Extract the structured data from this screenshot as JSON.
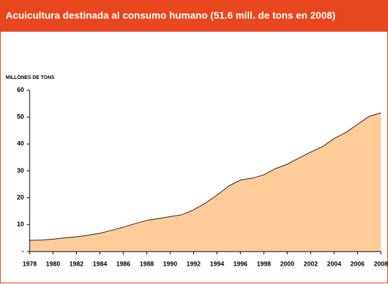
{
  "chart_data": {
    "type": "area",
    "title": "Acuicultura destinada al consumo humano (51.6 mill. de tons en 2008)",
    "y_label": "MILLONES DE TONS",
    "x": [
      1978,
      1979,
      1980,
      1981,
      1982,
      1983,
      1984,
      1985,
      1986,
      1987,
      1988,
      1989,
      1990,
      1991,
      1992,
      1993,
      1994,
      1995,
      1996,
      1997,
      1998,
      1999,
      2000,
      2001,
      2002,
      2003,
      2004,
      2005,
      2006,
      2007,
      2008
    ],
    "values": [
      4.2,
      4.3,
      4.6,
      5.1,
      5.5,
      6.1,
      6.8,
      7.9,
      9.1,
      10.4,
      11.6,
      12.3,
      13.0,
      13.7,
      15.5,
      18.0,
      21.0,
      24.4,
      26.6,
      27.3,
      28.5,
      30.9,
      32.5,
      34.8,
      37.0,
      39.0,
      42.0,
      44.3,
      47.3,
      50.3,
      51.6
    ],
    "color": "#ffcc99",
    "line_color": "#222222",
    "xlim": [
      1978,
      2008
    ],
    "xticks": [
      1978,
      1980,
      1982,
      1984,
      1986,
      1988,
      1990,
      1992,
      1994,
      1996,
      1998,
      2000,
      2002,
      2004,
      2006,
      2008
    ],
    "ylim": [
      0,
      60
    ],
    "yticks": [
      {
        "value": 0,
        "label": "-"
      },
      10,
      20,
      30,
      40,
      50,
      60
    ]
  }
}
